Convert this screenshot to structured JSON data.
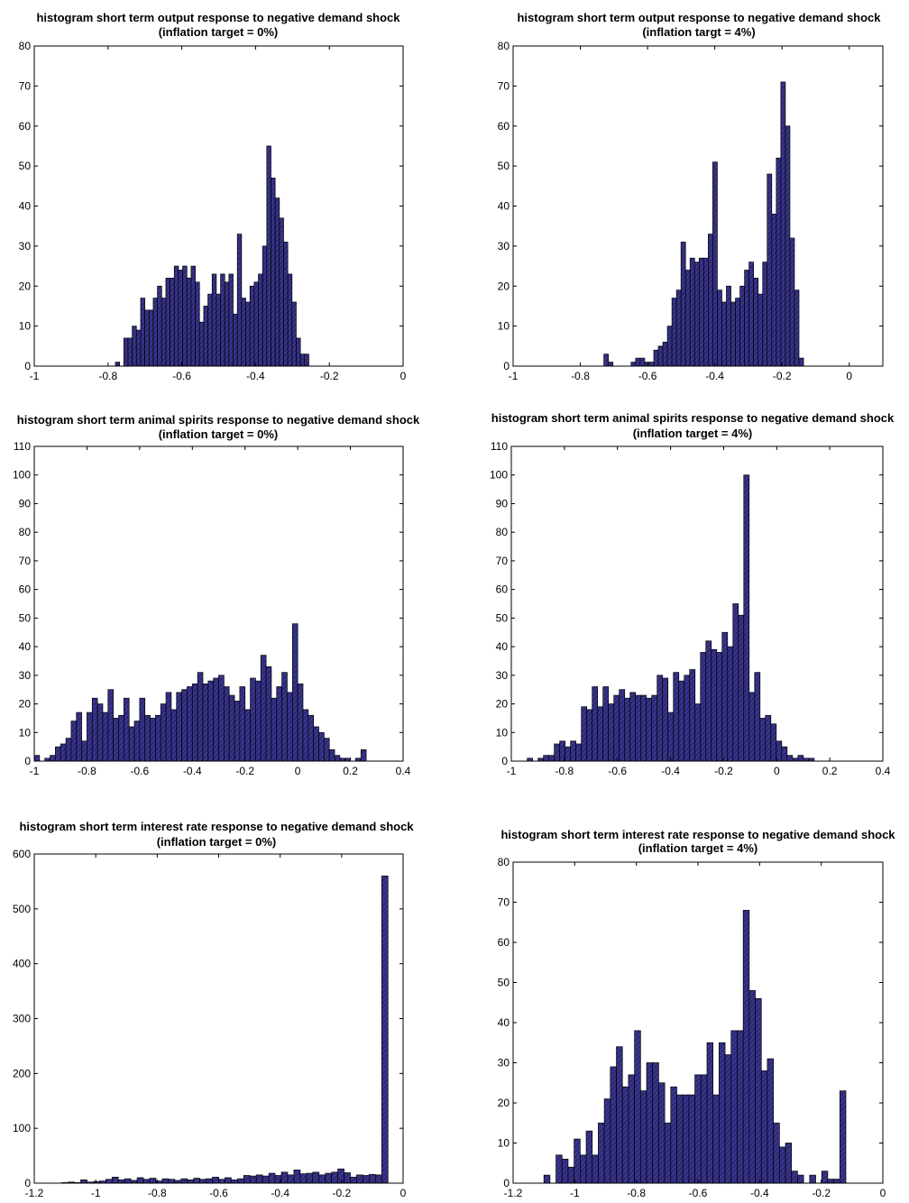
{
  "chart_data": [
    {
      "type": "bar",
      "title": "histogram short term output response to negative demand shock",
      "subtitle": "(inflation target = 0%)",
      "xlabel": "",
      "ylabel": "",
      "xlim": [
        -1,
        0
      ],
      "ylim": [
        0,
        80
      ],
      "xticks": [
        -1,
        -0.8,
        -0.6,
        -0.4,
        -0.2,
        0
      ],
      "xtick_labels": [
        "-1",
        "-0.8",
        "-0.6",
        "-0.4",
        "-0.2",
        "0"
      ],
      "yticks": [
        0,
        10,
        20,
        30,
        40,
        50,
        60,
        70,
        80
      ],
      "ytick_labels": [
        "0",
        "10",
        "20",
        "30",
        "40",
        "50",
        "60",
        "70",
        "80"
      ],
      "bin_start": -0.78,
      "bin_width": 0.0114,
      "legend": "none",
      "grid": false,
      "bar_color": "#2e2a7c",
      "values": [
        1,
        0,
        7,
        7,
        10,
        9,
        17,
        14,
        14,
        17,
        20,
        17,
        22,
        22,
        25,
        24,
        25,
        22,
        25,
        21,
        11,
        15,
        18,
        23,
        18,
        23,
        21,
        23,
        13,
        33,
        17,
        16,
        20,
        21,
        23,
        30,
        55,
        47,
        42,
        37,
        31,
        23,
        16,
        7,
        3,
        3
      ]
    },
    {
      "type": "bar",
      "title": "histogram short term output response to negative demand shock",
      "subtitle": "(inflation targt = 4%)",
      "xlabel": "",
      "ylabel": "",
      "xlim": [
        -1,
        0.1
      ],
      "ylim": [
        0,
        80
      ],
      "xticks": [
        -1,
        -0.8,
        -0.6,
        -0.4,
        -0.2,
        0
      ],
      "xtick_labels": [
        "-1",
        "-0.8",
        "-0.6",
        "-0.4",
        "-0.2",
        "0"
      ],
      "yticks": [
        0,
        10,
        20,
        30,
        40,
        50,
        60,
        70,
        80
      ],
      "ytick_labels": [
        "0",
        "10",
        "20",
        "30",
        "40",
        "50",
        "60",
        "70",
        "80"
      ],
      "bin_start": -0.73,
      "bin_width": 0.0135,
      "legend": "none",
      "grid": false,
      "bar_color": "#2e2a7c",
      "values": [
        3,
        1,
        0,
        0,
        0,
        0,
        1,
        2,
        2,
        1,
        1,
        4,
        5,
        6,
        10,
        17,
        19,
        31,
        24,
        27,
        26,
        27,
        27,
        33,
        51,
        19,
        16,
        20,
        16,
        17,
        20,
        24,
        26,
        22,
        18,
        26,
        48,
        38,
        52,
        71,
        60,
        32,
        19,
        2
      ]
    },
    {
      "type": "bar",
      "title": "histogram short term animal spirits response to negative demand shock",
      "subtitle": "(inflation target = 0%)",
      "xlabel": "",
      "ylabel": "",
      "xlim": [
        -1,
        0.4
      ],
      "ylim": [
        0,
        110
      ],
      "xticks": [
        -1,
        -0.8,
        -0.6,
        -0.4,
        -0.2,
        0,
        0.2,
        0.4
      ],
      "xtick_labels": [
        "-1",
        "-0.8",
        "-0.6",
        "-0.4",
        "-0.2",
        "0",
        "0.2",
        "0.4"
      ],
      "yticks": [
        0,
        10,
        20,
        30,
        40,
        50,
        60,
        70,
        80,
        90,
        100,
        110
      ],
      "ytick_labels": [
        "0",
        "10",
        "20",
        "30",
        "40",
        "50",
        "60",
        "70",
        "80",
        "90",
        "100",
        "110"
      ],
      "bin_start": -1.0,
      "bin_width": 0.02,
      "legend": "none",
      "grid": false,
      "bar_color": "#2e2a7c",
      "values": [
        2,
        0,
        1,
        2,
        5,
        6,
        8,
        14,
        17,
        7,
        17,
        22,
        20,
        17,
        25,
        15,
        16,
        22,
        12,
        14,
        22,
        16,
        15,
        16,
        20,
        24,
        18,
        24,
        25,
        26,
        27,
        31,
        27,
        28,
        29,
        30,
        26,
        23,
        21,
        26,
        18,
        29,
        28,
        37,
        33,
        22,
        26,
        31,
        24,
        48,
        27,
        18,
        16,
        12,
        10,
        8,
        4,
        2,
        1,
        1,
        0,
        1,
        4
      ]
    },
    {
      "type": "bar",
      "title": "histogram short term animal spirits response to negative demand shock",
      "subtitle": "(inflation target = 4%)",
      "xlabel": "",
      "ylabel": "",
      "xlim": [
        -1,
        0.4
      ],
      "ylim": [
        0,
        110
      ],
      "xticks": [
        -1,
        -0.8,
        -0.6,
        -0.4,
        -0.2,
        0,
        0.2,
        0.4
      ],
      "xtick_labels": [
        "-1",
        "-0.8",
        "-0.6",
        "-0.4",
        "-0.2",
        "0",
        "0.2",
        "0.4"
      ],
      "yticks": [
        0,
        10,
        20,
        30,
        40,
        50,
        60,
        70,
        80,
        90,
        100,
        110
      ],
      "ytick_labels": [
        "0",
        "10",
        "20",
        "30",
        "40",
        "50",
        "60",
        "70",
        "80",
        "90",
        "100",
        "110"
      ],
      "bin_start": -0.94,
      "bin_width": 0.0204,
      "legend": "none",
      "grid": false,
      "bar_color": "#2e2a7c",
      "values": [
        1,
        0,
        1,
        2,
        2,
        6,
        7,
        5,
        7,
        6,
        19,
        18,
        26,
        19,
        26,
        20,
        23,
        25,
        22,
        24,
        23,
        23,
        22,
        23,
        30,
        29,
        17,
        31,
        28,
        30,
        32,
        20,
        38,
        42,
        39,
        38,
        45,
        40,
        55,
        51,
        100,
        24,
        31,
        15,
        16,
        13,
        7,
        5,
        2,
        1,
        2,
        1,
        1
      ]
    },
    {
      "type": "bar",
      "title": "histogram short term interest rate response to negative demand shock",
      "subtitle": "(inflation target = 0%)",
      "xlabel": "",
      "ylabel": "",
      "xlim": [
        -1.2,
        0
      ],
      "ylim": [
        0,
        600
      ],
      "xticks": [
        -1.2,
        -1,
        -0.8,
        -0.6,
        -0.4,
        -0.2,
        0
      ],
      "xtick_labels": [
        "-1.2",
        "-1",
        "-0.8",
        "-0.6",
        "-0.4",
        "-0.2",
        "0"
      ],
      "yticks": [
        0,
        100,
        200,
        300,
        400,
        500,
        600
      ],
      "ytick_labels": [
        "0",
        "100",
        "200",
        "300",
        "400",
        "500",
        "600"
      ],
      "bin_start": -1.11,
      "bin_width": 0.0204,
      "legend": "none",
      "grid": false,
      "bar_color": "#2e2a7c",
      "values": [
        1,
        2,
        1,
        6,
        2,
        3,
        4,
        7,
        11,
        6,
        8,
        5,
        10,
        7,
        9,
        4,
        8,
        7,
        5,
        8,
        6,
        9,
        7,
        8,
        11,
        7,
        10,
        6,
        8,
        14,
        13,
        15,
        13,
        18,
        14,
        20,
        15,
        24,
        17,
        18,
        20,
        15,
        18,
        20,
        26,
        19,
        11,
        15,
        14,
        16,
        15,
        560
      ]
    },
    {
      "type": "bar",
      "title": "histogram short term interest rate response to negative demand shock",
      "subtitle": "(inflation target = 4%)",
      "xlabel": "",
      "ylabel": "",
      "xlim": [
        -1.2,
        0
      ],
      "ylim": [
        0,
        80
      ],
      "xticks": [
        -1.2,
        -1,
        -0.8,
        -0.6,
        -0.4,
        -0.2,
        0
      ],
      "xtick_labels": [
        "-1.2",
        "-1",
        "-0.8",
        "-0.6",
        "-0.4",
        "-0.2",
        "0"
      ],
      "yticks": [
        0,
        10,
        20,
        30,
        40,
        50,
        60,
        70,
        80
      ],
      "ytick_labels": [
        "0",
        "10",
        "20",
        "30",
        "40",
        "50",
        "60",
        "70",
        "80"
      ],
      "bin_start": -1.1,
      "bin_width": 0.0196,
      "legend": "none",
      "grid": false,
      "bar_color": "#2e2a7c",
      "values": [
        2,
        0,
        7,
        6,
        4,
        11,
        7,
        13,
        7,
        15,
        21,
        29,
        34,
        24,
        27,
        38,
        23,
        30,
        30,
        25,
        15,
        24,
        22,
        22,
        22,
        27,
        27,
        35,
        22,
        35,
        32,
        38,
        38,
        68,
        48,
        46,
        28,
        31,
        15,
        9,
        10,
        3,
        2,
        0,
        2,
        0,
        3,
        1,
        1,
        23
      ]
    }
  ]
}
